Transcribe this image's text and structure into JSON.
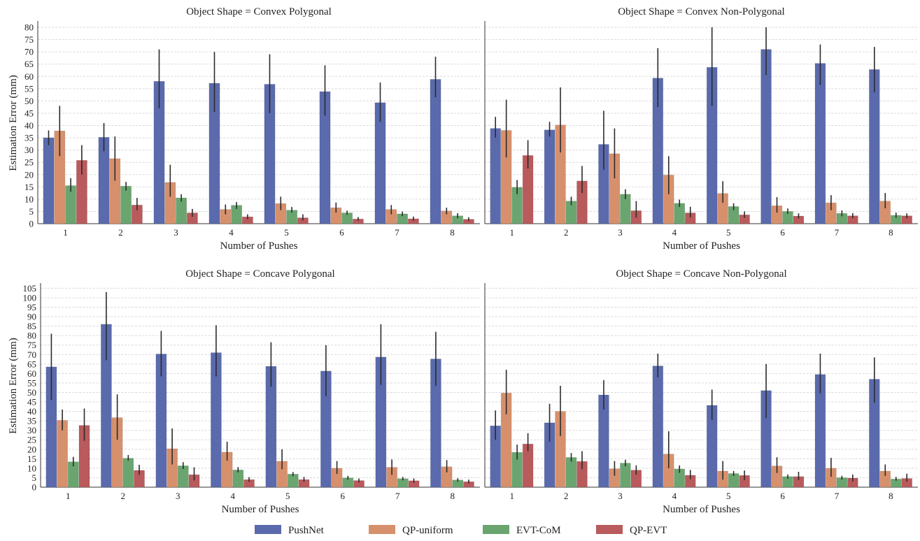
{
  "chart_data": [
    {
      "type": "bar",
      "title": "Object Shape = Convex Polygonal",
      "xlabel": "Number of Pushes",
      "ylabel": "Estimation Error (mm)",
      "categories": [
        "1",
        "2",
        "3",
        "4",
        "5",
        "6",
        "7",
        "8"
      ],
      "ylim": [
        0,
        82
      ],
      "yticks": [
        0,
        5,
        10,
        15,
        20,
        25,
        30,
        35,
        40,
        45,
        50,
        55,
        60,
        65,
        70,
        75,
        80
      ],
      "series": [
        {
          "name": "PushNet",
          "values": [
            35,
            35.2,
            58,
            57.2,
            56.8,
            53.8,
            49.3,
            58.8
          ],
          "err_low": [
            32,
            29.5,
            47,
            45.5,
            45,
            44,
            41.5,
            51.5
          ],
          "err_high": [
            38,
            41,
            71,
            70,
            69,
            64.5,
            57.5,
            68
          ]
        },
        {
          "name": "QP-uniform",
          "values": [
            37.8,
            26.5,
            16.8,
            5.8,
            8.2,
            6.5,
            5.8,
            5.2
          ],
          "err_low": [
            27.5,
            17.5,
            11,
            3.8,
            5.5,
            4.5,
            3.8,
            3.8
          ],
          "err_high": [
            48,
            35.5,
            24,
            7.8,
            11,
            8.6,
            7.6,
            6.5
          ]
        },
        {
          "name": "EVT-CoM",
          "values": [
            15.5,
            15.3,
            10.5,
            7.5,
            5.5,
            4.4,
            4,
            3.2
          ],
          "err_low": [
            13,
            13.5,
            9,
            6,
            4.5,
            3.6,
            3.1,
            2.2
          ],
          "err_high": [
            18.5,
            17,
            12,
            8.8,
            6.8,
            5.3,
            4.9,
            4.3
          ]
        },
        {
          "name": "QP-EVT",
          "values": [
            25.8,
            7.6,
            4.4,
            2.8,
            2.4,
            1.9,
            2,
            1.8
          ],
          "err_low": [
            20,
            5.5,
            2.8,
            1.8,
            1.3,
            1.2,
            1.2,
            1.1
          ],
          "err_high": [
            32,
            10.5,
            6,
            3.8,
            3.8,
            2.7,
            2.9,
            2.6
          ]
        }
      ]
    },
    {
      "type": "bar",
      "title": "Object Shape = Convex Non-Polygonal",
      "xlabel": "Number of Pushes",
      "ylabel": "",
      "categories": [
        "1",
        "2",
        "3",
        "4",
        "5",
        "6",
        "7",
        "8"
      ],
      "ylim": [
        0,
        82
      ],
      "yticks": [
        0,
        5,
        10,
        15,
        20,
        25,
        30,
        35,
        40,
        45,
        50,
        55,
        60,
        65,
        70,
        75,
        80
      ],
      "series": [
        {
          "name": "PushNet",
          "values": [
            38.8,
            38.2,
            32.3,
            59.3,
            63.7,
            71,
            65.3,
            62.8
          ],
          "err_low": [
            35,
            35.5,
            22,
            47.5,
            48,
            60.5,
            56.5,
            53.5
          ],
          "err_high": [
            43.5,
            41.5,
            46,
            71.5,
            80,
            80,
            73,
            72
          ]
        },
        {
          "name": "QP-uniform",
          "values": [
            38,
            40.2,
            28.5,
            19.8,
            12.3,
            7.3,
            8.5,
            9.2
          ],
          "err_low": [
            27,
            29,
            18.5,
            12,
            8.5,
            4.5,
            5.5,
            6.3
          ],
          "err_high": [
            50.5,
            55.5,
            38.8,
            27.5,
            17.3,
            10.8,
            11.6,
            12.5
          ]
        },
        {
          "name": "EVT-CoM",
          "values": [
            14.8,
            9.2,
            12,
            8.3,
            7,
            5,
            4.2,
            3.4
          ],
          "err_low": [
            12,
            7.5,
            10,
            6.8,
            5.5,
            4,
            3,
            2.4
          ],
          "err_high": [
            17.8,
            11,
            14,
            9.8,
            8.3,
            6.2,
            5.4,
            4.5
          ]
        },
        {
          "name": "QP-EVT",
          "values": [
            27.8,
            17.4,
            5.3,
            4.4,
            3.6,
            3.1,
            3.2,
            3.2
          ],
          "err_low": [
            22.5,
            12.5,
            2.5,
            2.5,
            2.4,
            2.2,
            2.2,
            2.2
          ],
          "err_high": [
            34,
            23.5,
            9.2,
            6.9,
            5,
            4.2,
            4.3,
            4.2
          ]
        }
      ]
    },
    {
      "type": "bar",
      "title": "Object Shape = Concave Polygonal",
      "xlabel": "Number of Pushes",
      "ylabel": "Estimation Error (mm)",
      "categories": [
        "1",
        "2",
        "3",
        "4",
        "5",
        "6",
        "7",
        "8"
      ],
      "ylim": [
        0,
        107
      ],
      "yticks": [
        0,
        5,
        10,
        15,
        20,
        25,
        30,
        35,
        40,
        45,
        50,
        55,
        60,
        65,
        70,
        75,
        80,
        85,
        90,
        95,
        100,
        105
      ],
      "series": [
        {
          "name": "PushNet",
          "values": [
            63.5,
            86,
            70.3,
            71,
            63.8,
            61.3,
            68.7,
            67.7
          ],
          "err_low": [
            46,
            67,
            58.5,
            58.5,
            53,
            48,
            54,
            53.5
          ],
          "err_high": [
            81,
            103,
            82.5,
            85.5,
            76.5,
            75,
            86,
            82
          ]
        },
        {
          "name": "QP-uniform",
          "values": [
            35.3,
            36.7,
            20.3,
            18.5,
            13.7,
            10,
            10.5,
            10.8
          ],
          "err_low": [
            30,
            25,
            12,
            14,
            9.5,
            7,
            6.5,
            7.8
          ],
          "err_high": [
            41,
            49,
            31,
            24,
            20,
            13.8,
            14.6,
            14.3
          ]
        },
        {
          "name": "EVT-CoM",
          "values": [
            13.4,
            15.3,
            11.3,
            9.1,
            6.9,
            4.9,
            4.5,
            3.8
          ],
          "err_low": [
            11,
            14,
            9.6,
            7.8,
            5.8,
            4,
            3.6,
            2.9
          ],
          "err_high": [
            16,
            17,
            13.2,
            10.6,
            8,
            6,
            5.4,
            4.7
          ]
        },
        {
          "name": "QP-EVT",
          "values": [
            32.6,
            8.9,
            6.6,
            4,
            4,
            3.5,
            3.4,
            2.9
          ],
          "err_low": [
            24.5,
            6.5,
            3.5,
            2.8,
            2.9,
            2.5,
            2.3,
            2
          ],
          "err_high": [
            41.5,
            11.8,
            10.5,
            5.3,
            5.4,
            4.6,
            4.6,
            4
          ]
        }
      ]
    },
    {
      "type": "bar",
      "title": "Object Shape = Concave Non-Polygonal",
      "xlabel": "Number of Pushes",
      "ylabel": "",
      "categories": [
        "1",
        "2",
        "3",
        "4",
        "5",
        "6",
        "7",
        "8"
      ],
      "ylim": [
        0,
        107
      ],
      "yticks": [
        0,
        5,
        10,
        15,
        20,
        25,
        30,
        35,
        40,
        45,
        50,
        55,
        60,
        65,
        70,
        75,
        80,
        85,
        90,
        95,
        100,
        105
      ],
      "series": [
        {
          "name": "PushNet",
          "values": [
            32.4,
            34,
            48.7,
            64,
            43.2,
            51,
            59.5,
            57
          ],
          "err_low": [
            25,
            24,
            41,
            58,
            35.5,
            36.5,
            49.5,
            44.5
          ],
          "err_high": [
            40.5,
            44,
            56.5,
            70.5,
            51.5,
            65,
            70.5,
            68.5
          ]
        },
        {
          "name": "QP-uniform",
          "values": [
            49.7,
            40,
            9.7,
            17.5,
            8.5,
            11.2,
            10,
            8.5
          ],
          "err_low": [
            38.5,
            27,
            6,
            10,
            4,
            7.5,
            5.5,
            6
          ],
          "err_high": [
            62,
            53.5,
            13.8,
            29.5,
            13.8,
            15.8,
            15.5,
            12
          ]
        },
        {
          "name": "EVT-CoM",
          "values": [
            18.4,
            15.7,
            12.7,
            9.6,
            7.2,
            5.6,
            5,
            4.3
          ],
          "err_low": [
            14.5,
            13.5,
            11,
            7.6,
            5.9,
            4.5,
            4,
            3.4
          ],
          "err_high": [
            22.5,
            18,
            14.5,
            11.5,
            8.5,
            6.7,
            6,
            5.4
          ]
        },
        {
          "name": "QP-EVT",
          "values": [
            22.8,
            13.6,
            9,
            6.3,
            6.2,
            5.6,
            4.8,
            4.6
          ],
          "err_low": [
            19,
            9.5,
            6.6,
            4.2,
            3.8,
            3.8,
            3,
            3
          ],
          "err_high": [
            28.5,
            19,
            11.5,
            9.1,
            8.8,
            8.1,
            6.7,
            7.1
          ]
        }
      ]
    }
  ],
  "legend": {
    "placement": "bottom-center",
    "items": [
      {
        "name": "PushNet",
        "color": "#5a6aad"
      },
      {
        "name": "QP-uniform",
        "color": "#d7906c"
      },
      {
        "name": "EVT-CoM",
        "color": "#6aa56f"
      },
      {
        "name": "QP-EVT",
        "color": "#b95a5c"
      }
    ]
  }
}
